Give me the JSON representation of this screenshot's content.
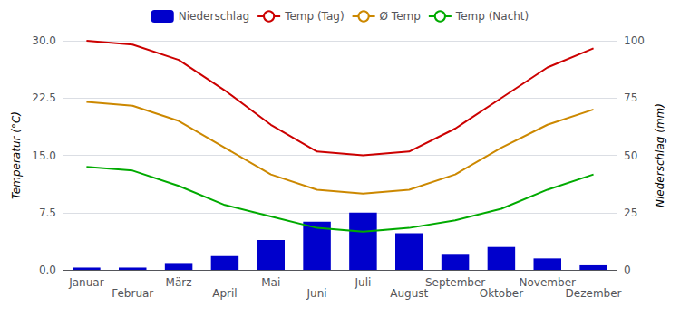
{
  "chart_data": {
    "type": "combo",
    "categories": [
      "Januar",
      "Februar",
      "März",
      "April",
      "Mai",
      "Juni",
      "Juli",
      "August",
      "September",
      "Oktober",
      "November",
      "Dezember"
    ],
    "series": [
      {
        "name": "Niederschlag",
        "type": "bar",
        "axis": "y2",
        "color": "#0000cc",
        "values": [
          1.0,
          1.0,
          3.0,
          6.0,
          13.0,
          21.0,
          25.0,
          16.0,
          7.0,
          10.0,
          5.0,
          2.0
        ]
      },
      {
        "name": "Temp (Tag)",
        "type": "line",
        "color": "#cc0000",
        "values": [
          30.0,
          29.5,
          27.5,
          23.5,
          19.0,
          15.5,
          15.0,
          15.5,
          18.5,
          22.5,
          26.5,
          29.0
        ]
      },
      {
        "name": "Ø Temp",
        "type": "line",
        "color": "#cc8800",
        "values": [
          22.0,
          21.5,
          19.5,
          16.0,
          12.5,
          10.5,
          10.0,
          10.5,
          12.5,
          16.0,
          19.0,
          21.0
        ]
      },
      {
        "name": "Temp (Nacht)",
        "type": "line",
        "color": "#00aa00",
        "values": [
          13.5,
          13.0,
          11.0,
          8.5,
          7.0,
          5.5,
          5.0,
          5.5,
          6.5,
          8.0,
          10.5,
          12.5
        ]
      }
    ],
    "ylabel": "Temperatur (°C)",
    "y2label": "Niederschlag (mm)",
    "ylim": [
      0.0,
      30.0
    ],
    "yticks": [
      {
        "value": 0.0,
        "label": "0.0"
      },
      {
        "value": 7.5,
        "label": "7.5"
      },
      {
        "value": 15.0,
        "label": "15.0"
      },
      {
        "value": 22.5,
        "label": "22.5"
      },
      {
        "value": 30.0,
        "label": "30.0"
      }
    ],
    "y2lim": [
      0,
      100
    ],
    "y2ticks": [
      0,
      25,
      50,
      75,
      100
    ],
    "grid": true,
    "legend": "top"
  }
}
